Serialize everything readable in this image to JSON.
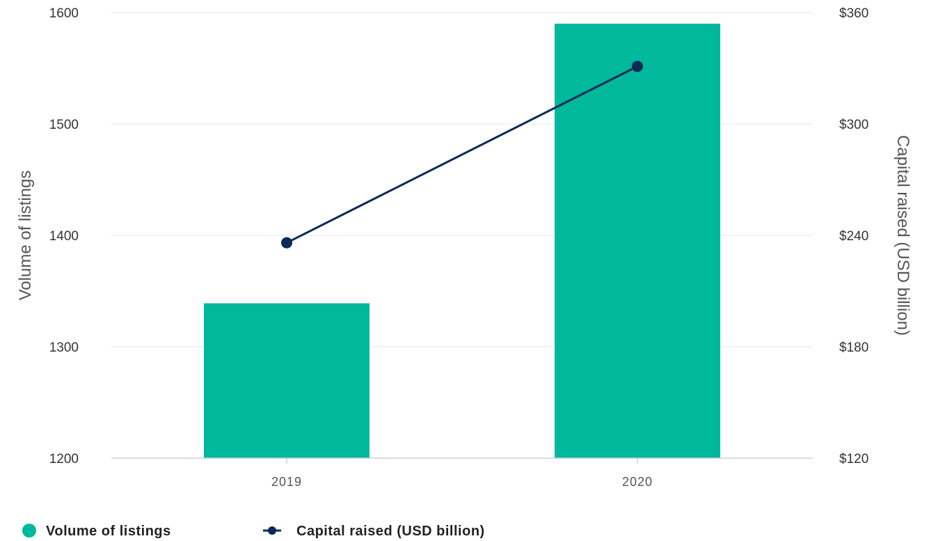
{
  "chart_data": {
    "type": "bar",
    "categories": [
      "2019",
      "2020"
    ],
    "series": [
      {
        "name": "Volume of listings",
        "type": "bar",
        "axis": "left",
        "values": [
          1339,
          1590
        ],
        "color": "#00b89c"
      },
      {
        "name": "Capital raised (USD billion)",
        "type": "line",
        "axis": "right",
        "values": [
          236,
          331
        ],
        "color": "#0b2a55"
      }
    ],
    "y_left": {
      "label": "Volume of listings",
      "min": 1200,
      "max": 1600,
      "ticks": [
        1200,
        1300,
        1400,
        1500,
        1600
      ],
      "tick_labels": [
        "1200",
        "1300",
        "1400",
        "1500",
        "1600"
      ]
    },
    "y_right": {
      "label": "Capital raised (USD billion)",
      "min": 120,
      "max": 360,
      "ticks": [
        120,
        180,
        240,
        300,
        360
      ],
      "tick_labels": [
        "$120",
        "$180",
        "$240",
        "$300",
        "$360"
      ]
    },
    "grid": true,
    "legend": "bottom-left",
    "title": ""
  }
}
